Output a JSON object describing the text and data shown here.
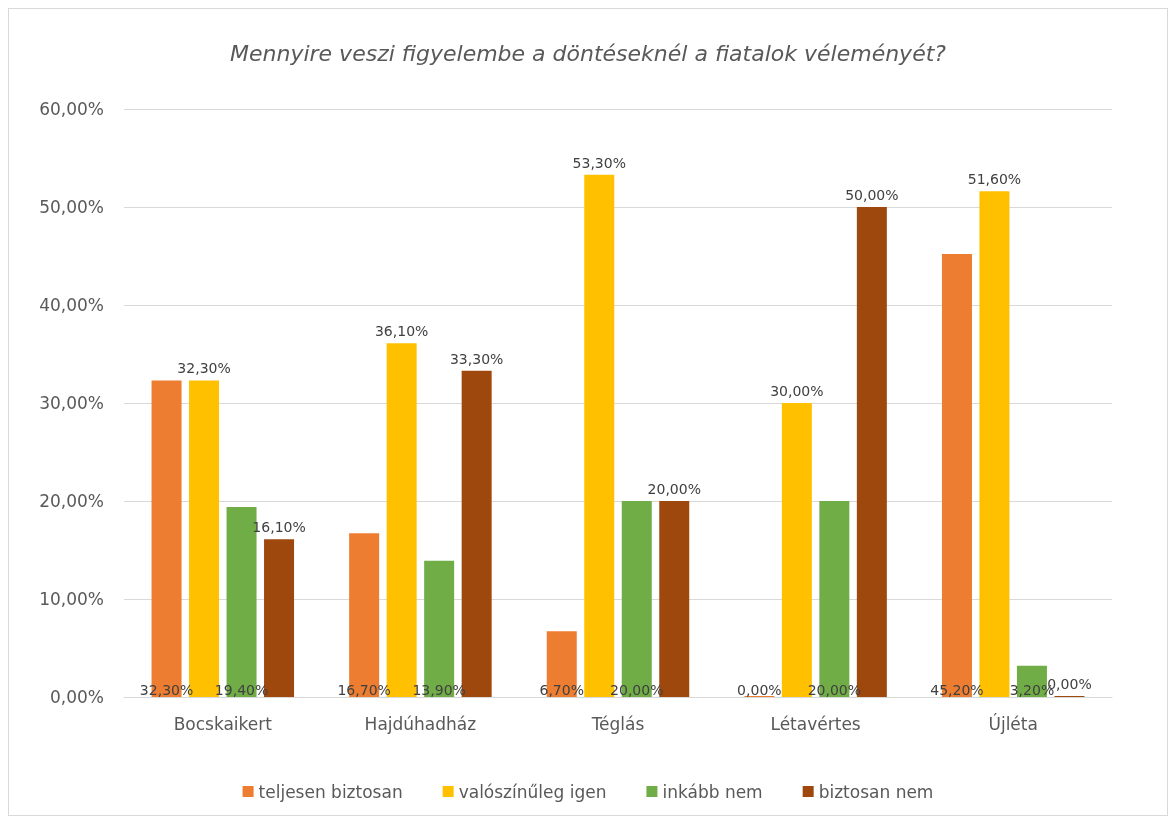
{
  "chart_data": {
    "type": "bar",
    "title": "Mennyire veszi figyelembe a döntéseknél a fiatalok véleményét?",
    "categories": [
      "Bocskaikert",
      "Hajdúhadház",
      "Téglás",
      "Létavértes",
      "Újléta"
    ],
    "series": [
      {
        "name": "teljesen biztosan",
        "color": "#ed7d31",
        "values": [
          32.3,
          16.7,
          6.7,
          0,
          45.2
        ],
        "value_labels": [
          "32,30%",
          "16,70%",
          "6,70%",
          "0,00%",
          "45,20%"
        ]
      },
      {
        "name": "valószínűleg igen",
        "color": "#ffc000",
        "values": [
          32.3,
          36.1,
          53.3,
          30.0,
          51.6
        ],
        "value_labels": [
          "32,30%",
          "36,10%",
          "53,30%",
          "30,00%",
          "51,60%"
        ]
      },
      {
        "name": "inkább nem",
        "color": "#70ad47",
        "values": [
          19.4,
          13.9,
          20.0,
          20.0,
          3.2
        ],
        "value_labels": [
          "19,40%",
          "13,90%",
          "20,00%",
          "20,00%",
          "3,20%"
        ]
      },
      {
        "name": "biztosan nem",
        "color": "#9e480e",
        "values": [
          16.1,
          33.3,
          20.0,
          50.0,
          0.0
        ],
        "value_labels": [
          "16,10%",
          "33,30%",
          "20,00%",
          "50,00%",
          "0,00%"
        ]
      }
    ],
    "ylim": [
      0,
      60
    ],
    "yticks": [
      {
        "value": 0,
        "label": "0,00%"
      },
      {
        "value": 10,
        "label": "10,00%"
      },
      {
        "value": 20,
        "label": "20,00%"
      },
      {
        "value": 30,
        "label": "30,00%"
      },
      {
        "value": 40,
        "label": "40,00%"
      },
      {
        "value": 50,
        "label": "50,00%"
      },
      {
        "value": 60,
        "label": "60,00%"
      }
    ],
    "grid": "y",
    "legend": "bottom"
  }
}
